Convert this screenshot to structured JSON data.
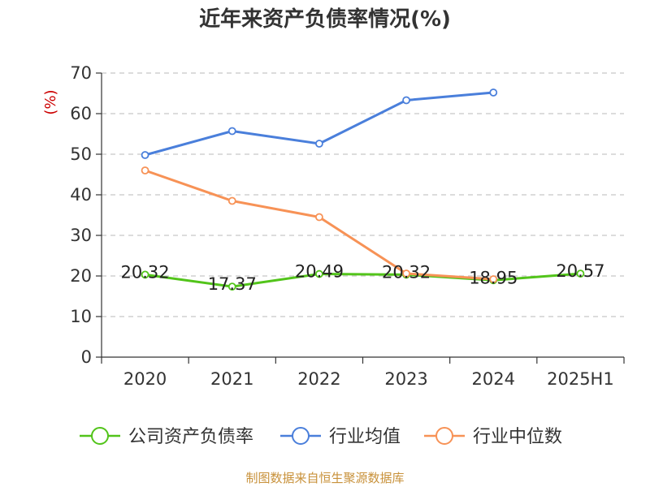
{
  "chart_data": {
    "type": "line",
    "title": "近年来资产负债率情况(%)",
    "ylabel": "(%)",
    "categories": [
      "2020",
      "2021",
      "2022",
      "2023",
      "2024",
      "2025H1"
    ],
    "ylim": [
      0,
      70
    ],
    "yticks": [
      "0",
      "10",
      "20",
      "30",
      "40",
      "50",
      "60",
      "70"
    ],
    "grid": true,
    "legend_position": "bottom",
    "series": [
      {
        "name": "公司资产负债率",
        "color": "#52c41a",
        "values": [
          20.32,
          17.37,
          20.49,
          20.32,
          18.95,
          20.57
        ],
        "labels": [
          "20.32",
          "17.37",
          "20.49",
          "20.32",
          "18.95",
          "20.57"
        ]
      },
      {
        "name": "行业均值",
        "color": "#4a7fdb",
        "values": [
          49.8,
          55.7,
          52.6,
          63.3,
          65.2,
          null
        ]
      },
      {
        "name": "行业中位数",
        "color": "#f79256",
        "values": [
          46.0,
          38.5,
          34.5,
          20.6,
          19.2,
          null
        ]
      }
    ],
    "source": "制图数据来自恒生聚源数据库",
    "colors": {
      "unit": "#cc0000",
      "source": "#c8913a",
      "axis": "#333333",
      "grid": "#c8c8c8"
    }
  }
}
